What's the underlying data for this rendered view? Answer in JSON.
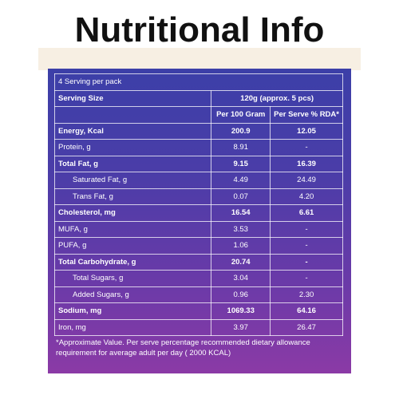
{
  "title": "Nutritional Info",
  "colors": {
    "panel_top": "#3c3fa8",
    "panel_bottom": "#8b3aa6",
    "title_band": "#f7efe3"
  },
  "pack_info": "4 Serving per pack",
  "serving_size_label": "Serving Size",
  "serving_size_value": "120g (approx. 5 pcs)",
  "column_headers": [
    "Per 100 Gram",
    "Per Serve % RDA*"
  ],
  "rows": [
    {
      "name": "Energy, Kcal",
      "per100": "200.9",
      "rda": "12.05",
      "bold": true,
      "indent": false
    },
    {
      "name": "Protein, g",
      "per100": "8.91",
      "rda": "-",
      "bold": false,
      "indent": false
    },
    {
      "name": "Total Fat, g",
      "per100": "9.15",
      "rda": "16.39",
      "bold": true,
      "indent": false
    },
    {
      "name": "Saturated Fat, g",
      "per100": "4.49",
      "rda": "24.49",
      "bold": false,
      "indent": true
    },
    {
      "name": "Trans Fat, g",
      "per100": "0.07",
      "rda": "4.20",
      "bold": false,
      "indent": true
    },
    {
      "name": "Cholesterol, mg",
      "per100": "16.54",
      "rda": "6.61",
      "bold": true,
      "indent": false
    },
    {
      "name": "MUFA, g",
      "per100": "3.53",
      "rda": "-",
      "bold": false,
      "indent": false
    },
    {
      "name": "PUFA, g",
      "per100": "1.06",
      "rda": "-",
      "bold": false,
      "indent": false
    },
    {
      "name": "Total Carbohydrate, g",
      "per100": "20.74",
      "rda": "-",
      "bold": true,
      "indent": false
    },
    {
      "name": "Total Sugars, g",
      "per100": "3.04",
      "rda": "-",
      "bold": false,
      "indent": true
    },
    {
      "name": "Added Sugars, g",
      "per100": "0.96",
      "rda": "2.30",
      "bold": false,
      "indent": true
    },
    {
      "name": "Sodium, mg",
      "per100": "1069.33",
      "rda": "64.16",
      "bold": true,
      "indent": false
    },
    {
      "name": "Iron, mg",
      "per100": "3.97",
      "rda": "26.47",
      "bold": false,
      "indent": false
    }
  ],
  "footnote": "*Approximate Value. Per serve percentage recommended dietary allowance requirement for average adult per day ( 2000 KCAL)"
}
